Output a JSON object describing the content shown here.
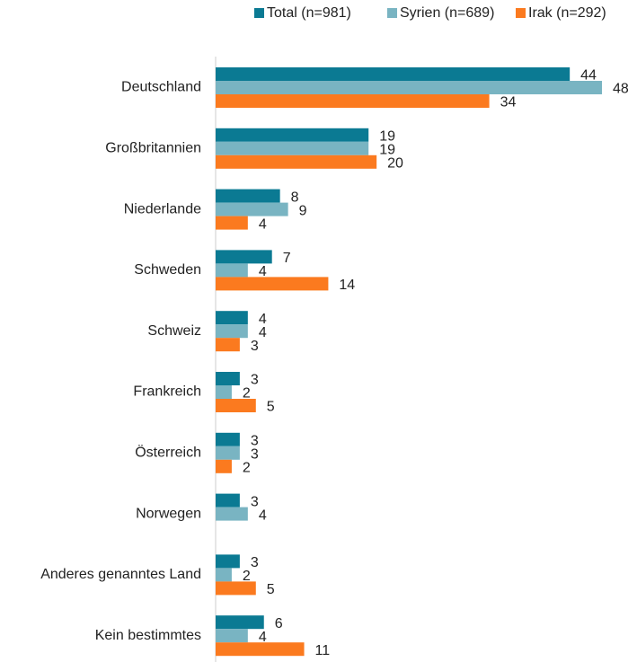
{
  "chart_data": {
    "type": "hbar",
    "categories": [
      "Deutschland",
      "Großbritannien",
      "Niederlande",
      "Schweden",
      "Schweiz",
      "Frankreich",
      "Österreich",
      "Norwegen",
      "Anderes genanntes Land",
      "Kein bestimmtes"
    ],
    "series": [
      {
        "name": "Total (n=981)",
        "color": "#0b7a93",
        "values": [
          44,
          19,
          8,
          7,
          4,
          3,
          3,
          3,
          3,
          6
        ]
      },
      {
        "name": "Syrien (n=689)",
        "color": "#79b4c2",
        "values": [
          48,
          19,
          9,
          4,
          4,
          2,
          3,
          4,
          2,
          4
        ]
      },
      {
        "name": "Irak (n=292)",
        "color": "#fb7a1f",
        "values": [
          34,
          20,
          4,
          14,
          3,
          5,
          2,
          null,
          5,
          11
        ]
      }
    ],
    "xlim": [
      0,
      48
    ],
    "legend": "top"
  }
}
